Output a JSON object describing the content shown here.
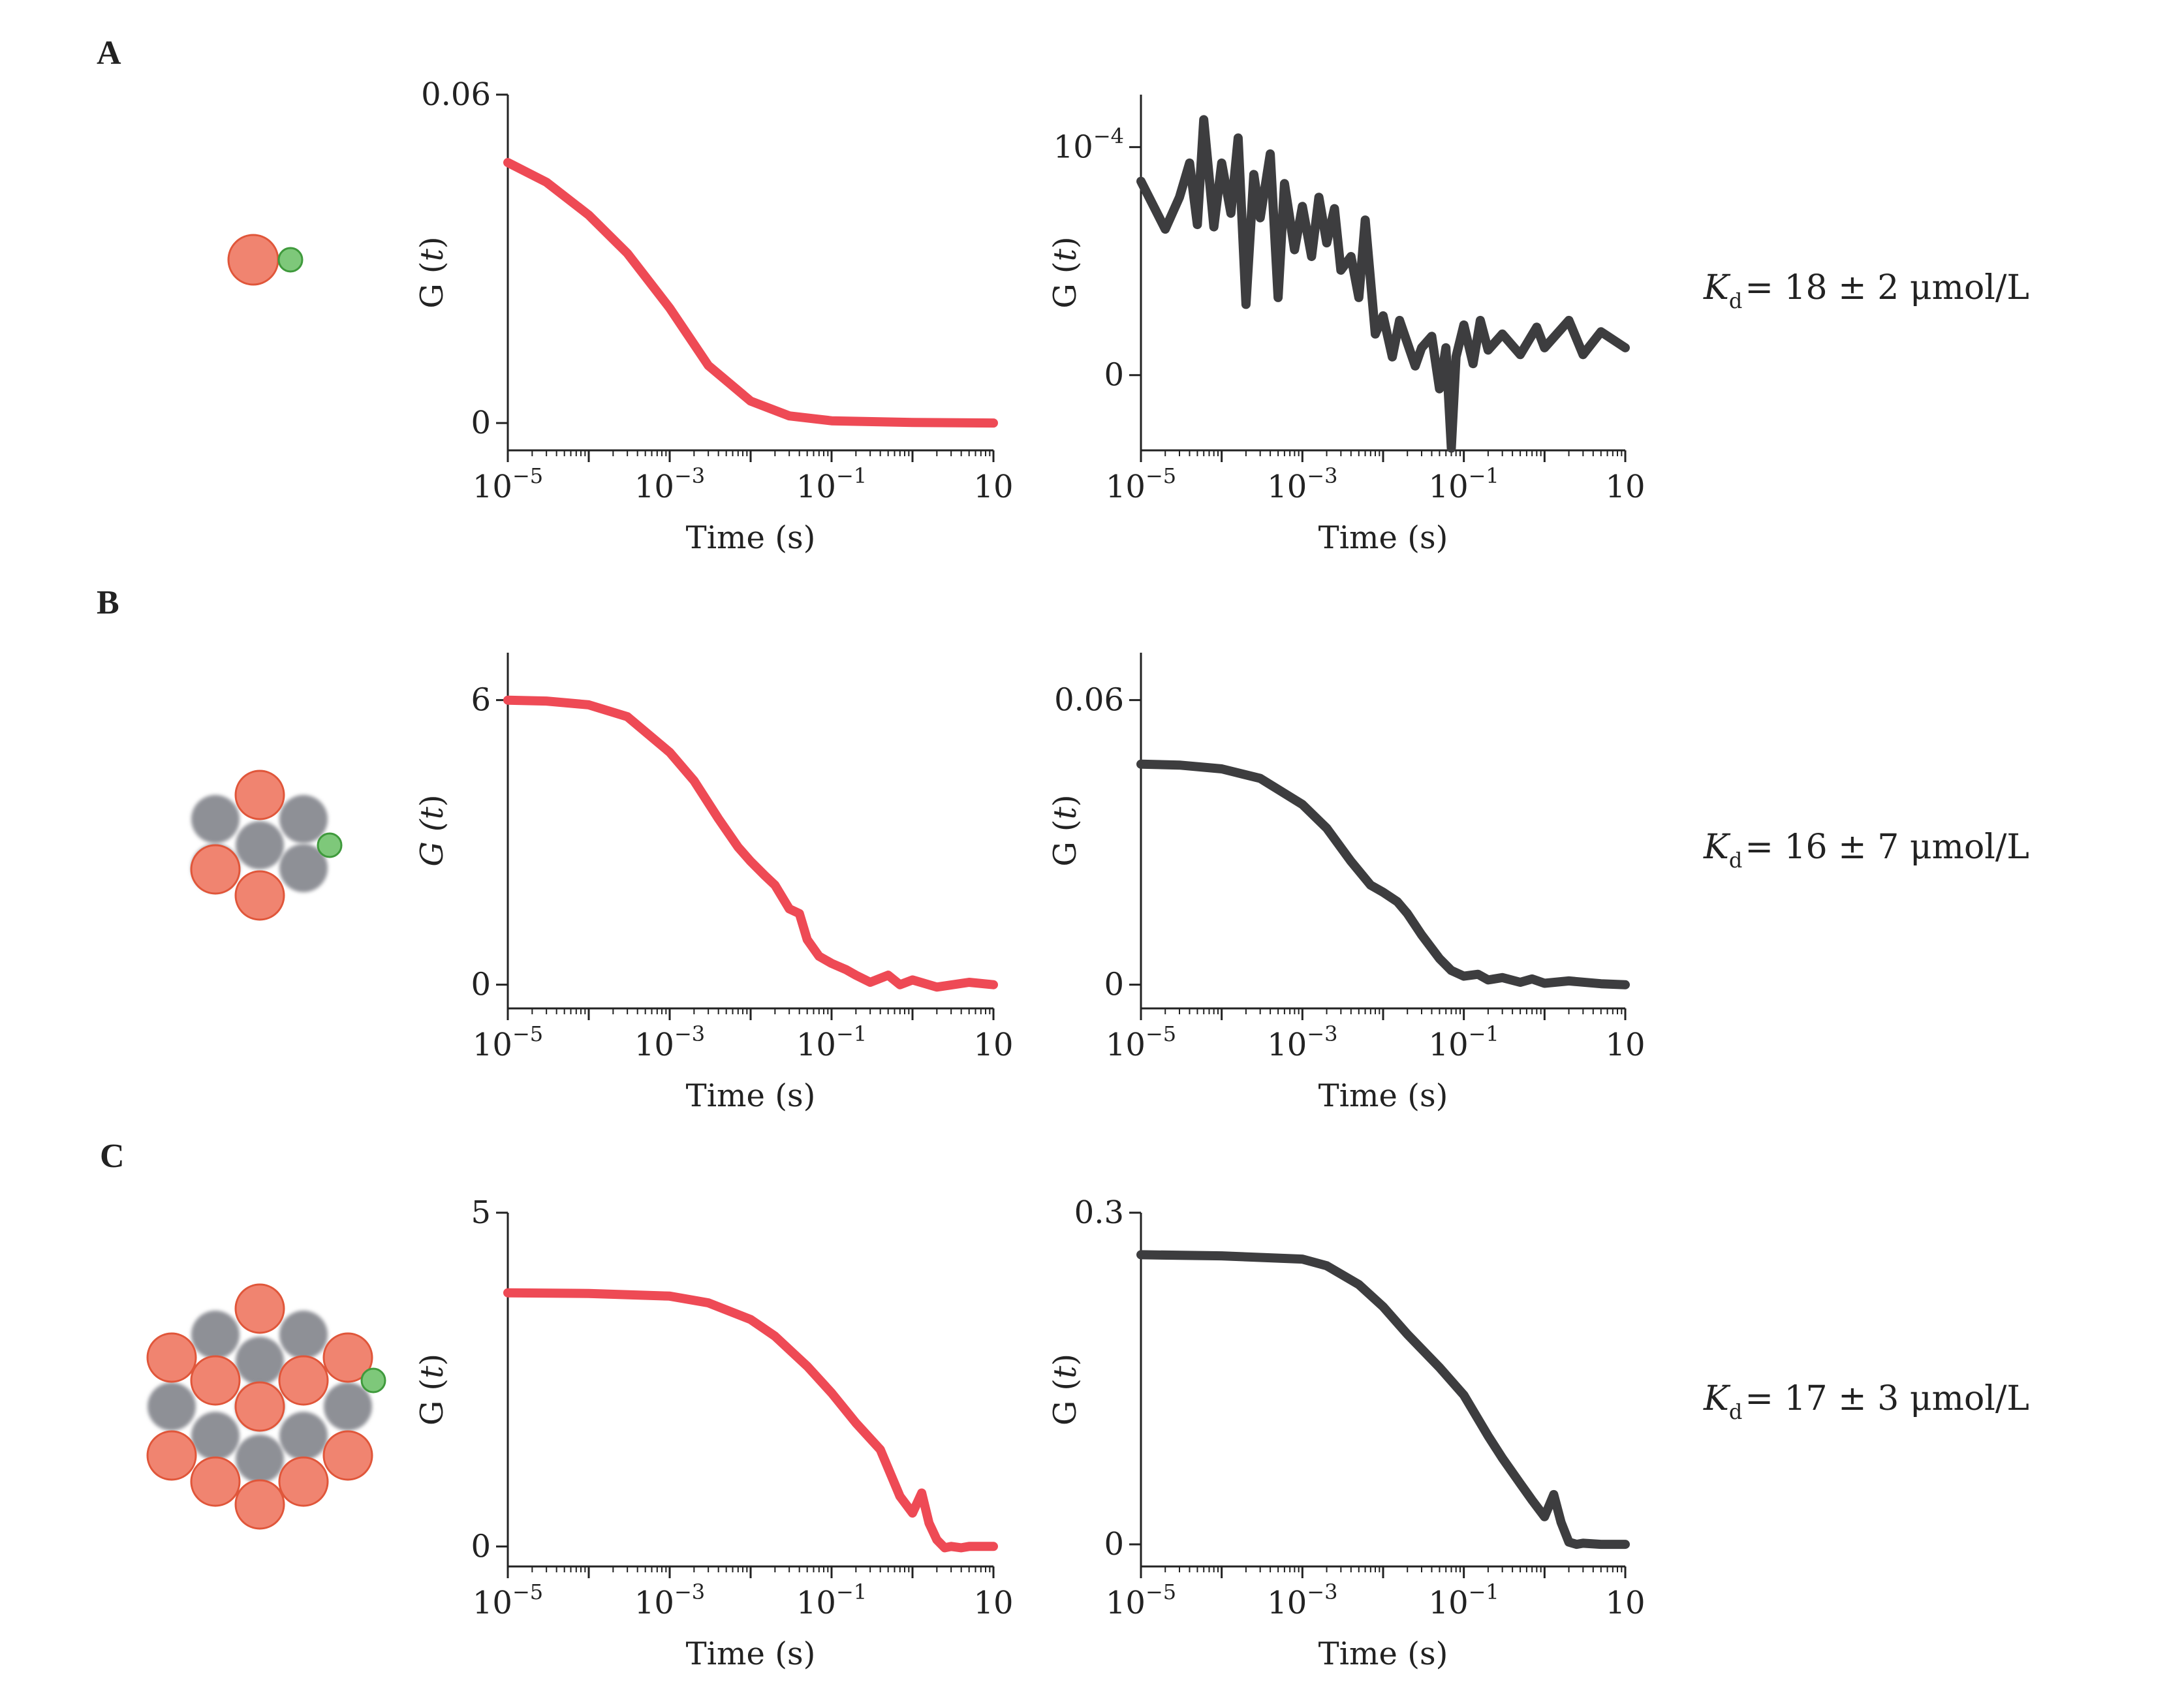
{
  "colors": {
    "red_series": "#ee4a55",
    "gray_series": "#3d3d3f",
    "orange_sphere": "#f08470",
    "orange_sphere_edge": "#e0563a",
    "gray_sphere": "#8e9096",
    "green_sphere": "#7ec87a",
    "green_sphere_edge": "#3f9a3c"
  },
  "panels": [
    {
      "label": "A",
      "kd": {
        "symbol": "K",
        "subscript": "d",
        "value": "= 18 ± 2 μmol/L"
      },
      "schematic": "single-monomer-with-ligand-icon"
    },
    {
      "label": "B",
      "kd": {
        "symbol": "K",
        "subscript": "d",
        "value": "= 16 ± 7 μmol/L"
      },
      "schematic": "small-cluster-with-ligand-icon"
    },
    {
      "label": "C",
      "kd": {
        "symbol": "K",
        "subscript": "d",
        "value": "= 17 ± 3 μmol/L"
      },
      "schematic": "large-cluster-with-ligand-icon"
    }
  ],
  "chart_data": [
    {
      "type": "line",
      "panel": "A",
      "column": "left",
      "xlabel": "Time (s)",
      "ylabel_main": "G (",
      "ylabel_var": "t",
      "ylabel_end": ")",
      "xscale": "log",
      "xlim": [
        1e-05,
        10
      ],
      "ylim": [
        -0.005,
        0.06
      ],
      "xticks": [
        {
          "label": "10",
          "exp": "−5"
        },
        {
          "label": "10",
          "exp": "−3"
        },
        {
          "label": "10",
          "exp": "−1"
        },
        {
          "label": "10",
          "exp": ""
        }
      ],
      "yticks": [
        "0",
        "0.06"
      ],
      "ytick_values": [
        0,
        0.06
      ],
      "series": [
        {
          "color": "red",
          "x": [
            1e-05,
            3e-05,
            0.0001,
            0.0003,
            0.001,
            0.003,
            0.01,
            0.03,
            0.1,
            1,
            10
          ],
          "y": [
            0.0476,
            0.044,
            0.038,
            0.031,
            0.021,
            0.0105,
            0.004,
            0.0013,
            0.0004,
            0.0001,
            0.0
          ]
        }
      ]
    },
    {
      "type": "line",
      "panel": "A",
      "column": "right",
      "xlabel": "Time (s)",
      "ylabel_main": "G (",
      "ylabel_var": "t",
      "ylabel_end": ")",
      "xscale": "log",
      "xlim": [
        1e-05,
        10
      ],
      "ylim": [
        -3.3e-05,
        0.000123
      ],
      "xticks": [
        {
          "label": "10",
          "exp": "−5"
        },
        {
          "label": "10",
          "exp": "−3"
        },
        {
          "label": "10",
          "exp": "−1"
        },
        {
          "label": "10",
          "exp": ""
        }
      ],
      "yticks": [
        {
          "label": "0",
          "exp": ""
        },
        {
          "label": "10",
          "exp": "−4"
        }
      ],
      "ytick_values": [
        0,
        0.0001
      ],
      "series": [
        {
          "color": "gray",
          "x": [
            1e-05,
            2e-05,
            3e-05,
            4e-05,
            5e-05,
            6e-05,
            8e-05,
            0.0001,
            0.00013,
            0.00016,
            0.0002,
            0.00025,
            0.0003,
            0.0004,
            0.0005,
            0.0006,
            0.0008,
            0.001,
            0.0013,
            0.0016,
            0.002,
            0.0025,
            0.003,
            0.004,
            0.005,
            0.006,
            0.008,
            0.01,
            0.013,
            0.016,
            0.02,
            0.025,
            0.03,
            0.04,
            0.05,
            0.06,
            0.07,
            0.08,
            0.1,
            0.13,
            0.16,
            0.2,
            0.3,
            0.5,
            0.8,
            1,
            2,
            3,
            5,
            10
          ],
          "y": [
            8.5e-05,
            6.4e-05,
            7.8e-05,
            9.3e-05,
            6.6e-05,
            0.000112,
            6.5e-05,
            9.3e-05,
            7.1e-05,
            0.000104,
            3.1e-05,
            8.8e-05,
            6.9e-05,
            9.7e-05,
            3.4e-05,
            8.4e-05,
            5.5e-05,
            7.4e-05,
            5.2e-05,
            7.8e-05,
            5.8e-05,
            7.3e-05,
            4.6e-05,
            5.2e-05,
            3.4e-05,
            6.8e-05,
            1.8e-05,
            2.6e-05,
            8e-06,
            2.4e-05,
            1.4e-05,
            4e-06,
            1.2e-05,
            1.7e-05,
            -6e-06,
            1.2e-05,
            -3.2e-05,
            8e-06,
            2.2e-05,
            5e-06,
            2.4e-05,
            1.1e-05,
            1.8e-05,
            9e-06,
            2.1e-05,
            1.2e-05,
            2.4e-05,
            9e-06,
            1.9e-05,
            1.2e-05
          ]
        }
      ]
    },
    {
      "type": "line",
      "panel": "B",
      "column": "left",
      "xlabel": "Time (s)",
      "ylabel_main": "G (",
      "ylabel_var": "t",
      "ylabel_end": ")",
      "ylabel_italic": true,
      "xscale": "log",
      "xlim": [
        1e-05,
        10
      ],
      "ylim": [
        -0.5,
        7.0
      ],
      "xticks": [
        {
          "label": "10",
          "exp": "−5"
        },
        {
          "label": "10",
          "exp": "−3"
        },
        {
          "label": "10",
          "exp": "−1"
        },
        {
          "label": "10",
          "exp": ""
        }
      ],
      "yticks": [
        "0",
        "6"
      ],
      "ytick_values": [
        0,
        6
      ],
      "series": [
        {
          "color": "red",
          "x": [
            1e-05,
            3e-05,
            0.0001,
            0.0003,
            0.001,
            0.002,
            0.004,
            0.007,
            0.01,
            0.015,
            0.02,
            0.03,
            0.04,
            0.05,
            0.07,
            0.1,
            0.15,
            0.2,
            0.3,
            0.5,
            0.7,
            1,
            2,
            5,
            10
          ],
          "y": [
            6.0,
            5.98,
            5.9,
            5.65,
            4.9,
            4.3,
            3.5,
            2.9,
            2.6,
            2.3,
            2.1,
            1.6,
            1.5,
            0.95,
            0.6,
            0.45,
            0.32,
            0.2,
            0.05,
            0.2,
            0.0,
            0.1,
            -0.05,
            0.05,
            0.0
          ]
        }
      ]
    },
    {
      "type": "line",
      "panel": "B",
      "column": "right",
      "xlabel": "Time (s)",
      "ylabel_main": "G (",
      "ylabel_var": "t",
      "ylabel_end": ")",
      "xscale": "log",
      "xlim": [
        1e-05,
        10
      ],
      "ylim": [
        -0.005,
        0.07
      ],
      "xticks": [
        {
          "label": "10",
          "exp": "−5"
        },
        {
          "label": "10",
          "exp": "−3"
        },
        {
          "label": "10",
          "exp": "−1"
        },
        {
          "label": "10",
          "exp": ""
        }
      ],
      "yticks": [
        "0",
        "0.06"
      ],
      "ytick_values": [
        0,
        0.06
      ],
      "series": [
        {
          "color": "gray",
          "x": [
            1e-05,
            3e-05,
            0.0001,
            0.0003,
            0.001,
            0.002,
            0.004,
            0.007,
            0.01,
            0.015,
            0.02,
            0.03,
            0.05,
            0.07,
            0.1,
            0.15,
            0.2,
            0.3,
            0.5,
            0.7,
            1,
            2,
            5,
            10
          ],
          "y": [
            0.0465,
            0.0463,
            0.0455,
            0.0435,
            0.038,
            0.033,
            0.026,
            0.021,
            0.0195,
            0.0175,
            0.015,
            0.0105,
            0.0055,
            0.003,
            0.0018,
            0.0022,
            0.001,
            0.0015,
            0.0005,
            0.0012,
            0.0003,
            0.0008,
            0.0002,
            0.0
          ]
        }
      ]
    },
    {
      "type": "line",
      "panel": "C",
      "column": "left",
      "xlabel": "Time (s)",
      "ylabel_main": "G (",
      "ylabel_var": "t",
      "ylabel_end": ")",
      "xscale": "log",
      "xlim": [
        1e-05,
        10
      ],
      "ylim": [
        -0.3,
        5.0
      ],
      "xticks": [
        {
          "label": "10",
          "exp": "−5"
        },
        {
          "label": "10",
          "exp": "−3"
        },
        {
          "label": "10",
          "exp": "−1"
        },
        {
          "label": "10",
          "exp": ""
        }
      ],
      "yticks": [
        "0",
        "5"
      ],
      "ytick_values": [
        0,
        5
      ],
      "series": [
        {
          "color": "red",
          "x": [
            1e-05,
            0.0001,
            0.001,
            0.003,
            0.01,
            0.02,
            0.05,
            0.1,
            0.2,
            0.4,
            0.7,
            1,
            1.3,
            1.6,
            2,
            2.5,
            3,
            4,
            5,
            7,
            10
          ],
          "y": [
            3.8,
            3.79,
            3.75,
            3.65,
            3.4,
            3.15,
            2.7,
            2.3,
            1.85,
            1.45,
            0.75,
            0.5,
            0.8,
            0.35,
            0.1,
            -0.02,
            0.0,
            -0.02,
            0.0,
            0.0,
            0.0
          ]
        }
      ]
    },
    {
      "type": "line",
      "panel": "C",
      "column": "right",
      "xlabel": "Time (s)",
      "ylabel_main": "G (",
      "ylabel_var": "t",
      "ylabel_end": ")",
      "xscale": "log",
      "xlim": [
        1e-05,
        10
      ],
      "ylim": [
        -0.02,
        0.3
      ],
      "xticks": [
        {
          "label": "10",
          "exp": "−5"
        },
        {
          "label": "10",
          "exp": "−3"
        },
        {
          "label": "10",
          "exp": "−1"
        },
        {
          "label": "10",
          "exp": ""
        }
      ],
      "yticks": [
        "0",
        "0.3"
      ],
      "ytick_values": [
        0,
        0.3
      ],
      "series": [
        {
          "color": "gray",
          "x": [
            1e-05,
            0.0001,
            0.001,
            0.002,
            0.005,
            0.01,
            0.02,
            0.05,
            0.1,
            0.2,
            0.3,
            0.5,
            0.7,
            1,
            1.3,
            1.6,
            2,
            2.5,
            3,
            5,
            10
          ],
          "y": [
            0.262,
            0.261,
            0.258,
            0.252,
            0.235,
            0.215,
            0.19,
            0.16,
            0.135,
            0.098,
            0.078,
            0.055,
            0.04,
            0.025,
            0.045,
            0.02,
            0.002,
            0.0,
            0.001,
            0.0,
            0.0
          ]
        }
      ]
    }
  ]
}
